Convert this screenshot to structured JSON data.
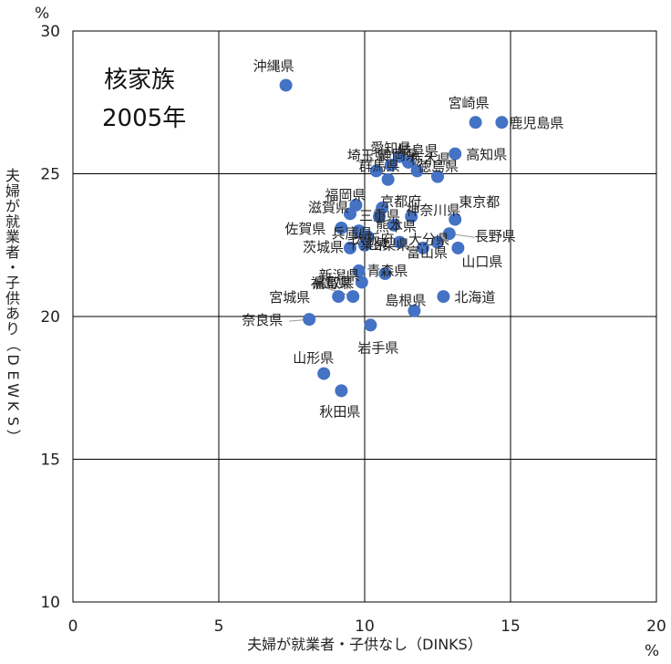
{
  "chart_data": {
    "type": "scatter",
    "title_lines": [
      "核家族",
      "2005年"
    ],
    "xlabel": "夫婦が就業者・子供なし（DINKS）",
    "ylabel": "夫婦が就業者・子供あり（DEWKS）",
    "x_unit": "%",
    "y_unit": "%",
    "xlim": [
      0,
      20
    ],
    "ylim": [
      10,
      30
    ],
    "x_ticks": [
      0,
      5,
      10,
      15,
      20
    ],
    "y_ticks": [
      10,
      15,
      20,
      25,
      30
    ],
    "grid": true,
    "marker_color": "#4472C4",
    "points": [
      {
        "label": "沖縄県",
        "x": 7.3,
        "y": 28.1
      },
      {
        "label": "宮崎県",
        "x": 13.8,
        "y": 26.8
      },
      {
        "label": "鹿児島県",
        "x": 14.7,
        "y": 26.8
      },
      {
        "label": "高知県",
        "x": 13.1,
        "y": 25.7
      },
      {
        "label": "愛知県",
        "x": 11.2,
        "y": 25.6
      },
      {
        "label": "岐阜県",
        "x": 11.5,
        "y": 25.4
      },
      {
        "label": "埼玉県",
        "x": 10.4,
        "y": 25.1
      },
      {
        "label": "群馬県",
        "x": 10.8,
        "y": 24.8
      },
      {
        "label": "栃木県",
        "x": 11.8,
        "y": 25.1
      },
      {
        "label": "徳島県",
        "x": 12.5,
        "y": 24.9
      },
      {
        "label": "静岡県",
        "x": 10.9,
        "y": 25.3
      },
      {
        "label": "福岡県",
        "x": 9.7,
        "y": 23.9
      },
      {
        "label": "滋賀県",
        "x": 9.5,
        "y": 23.6
      },
      {
        "label": "京都府",
        "x": 10.6,
        "y": 23.8
      },
      {
        "label": "神奈川県",
        "x": 11.6,
        "y": 23.5
      },
      {
        "label": "佐賀県",
        "x": 9.2,
        "y": 23.1
      },
      {
        "label": "東京都",
        "x": 13.1,
        "y": 23.4
      },
      {
        "label": "長野県",
        "x": 12.9,
        "y": 22.9
      },
      {
        "label": "大分県",
        "x": 12.5,
        "y": 22.6
      },
      {
        "label": "山口県",
        "x": 13.2,
        "y": 22.4
      },
      {
        "label": "大阪府",
        "x": 10.1,
        "y": 22.8
      },
      {
        "label": "熊本県",
        "x": 11.0,
        "y": 23.2
      },
      {
        "label": "三重県",
        "x": 10.5,
        "y": 23.5
      },
      {
        "label": "兵庫県",
        "x": 9.8,
        "y": 23.0
      },
      {
        "label": "茨城県",
        "x": 9.5,
        "y": 22.4
      },
      {
        "label": "千葉県",
        "x": 10.0,
        "y": 22.5
      },
      {
        "label": "山梨県",
        "x": 11.2,
        "y": 22.6
      },
      {
        "label": "富山県",
        "x": 12.0,
        "y": 22.4
      },
      {
        "label": "新潟県",
        "x": 9.8,
        "y": 21.6
      },
      {
        "label": "福島県",
        "x": 9.9,
        "y": 21.2
      },
      {
        "label": "青森県",
        "x": 10.7,
        "y": 21.5
      },
      {
        "label": "宮城県",
        "x": 9.1,
        "y": 20.7
      },
      {
        "label": "鳥取県",
        "x": 9.6,
        "y": 20.7
      },
      {
        "label": "島根県",
        "x": 11.7,
        "y": 20.2
      },
      {
        "label": "北海道",
        "x": 12.7,
        "y": 20.7
      },
      {
        "label": "奈良県",
        "x": 8.1,
        "y": 19.9
      },
      {
        "label": "岩手県",
        "x": 10.2,
        "y": 19.7
      },
      {
        "label": "山形県",
        "x": 8.6,
        "y": 18.0
      },
      {
        "label": "秋田県",
        "x": 9.2,
        "y": 17.4
      }
    ]
  }
}
